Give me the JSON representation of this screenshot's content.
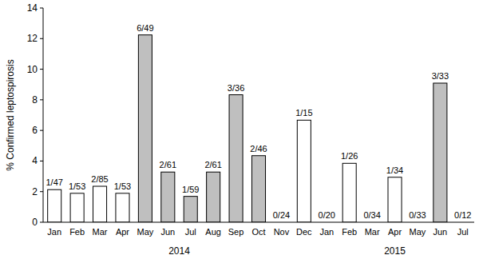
{
  "chart_data": {
    "type": "bar",
    "y_label": "% Confirmed leptospirosis",
    "categories": [
      "Jan",
      "Feb",
      "Mar",
      "Apr",
      "May",
      "Jun",
      "Jul",
      "Aug",
      "Sep",
      "Oct",
      "Nov",
      "Dec",
      "Jan",
      "Feb",
      "Mar",
      "Apr",
      "May",
      "Jun",
      "Jul"
    ],
    "values": [
      2.13,
      1.89,
      2.35,
      1.89,
      12.24,
      3.28,
      1.69,
      3.28,
      8.33,
      4.35,
      0,
      6.67,
      0,
      3.85,
      0,
      2.94,
      0,
      9.09,
      0
    ],
    "value_labels": [
      "1/47",
      "1/53",
      "2/85",
      "1/53",
      "6/49",
      "2/61",
      "1/59",
      "2/61",
      "3/36",
      "2/46",
      "0/24",
      "1/15",
      "0/20",
      "1/26",
      "0/34",
      "1/34",
      "0/33",
      "3/33",
      "0/12"
    ],
    "colors": [
      "#ffffff",
      "#ffffff",
      "#ffffff",
      "#ffffff",
      "#bfbfbf",
      "#bfbfbf",
      "#bfbfbf",
      "#bfbfbf",
      "#bfbfbf",
      "#bfbfbf",
      "#ffffff",
      "#ffffff",
      "#ffffff",
      "#ffffff",
      "#ffffff",
      "#ffffff",
      "#ffffff",
      "#bfbfbf",
      "#ffffff"
    ],
    "groups": [
      {
        "label": "2014",
        "categories": 12
      },
      {
        "label": "2015",
        "categories": 7
      }
    ],
    "ylim": [
      0,
      14
    ],
    "yticks": [
      0,
      2,
      4,
      6,
      8,
      10,
      12,
      14
    ],
    "data_labels": true,
    "grid": false
  }
}
